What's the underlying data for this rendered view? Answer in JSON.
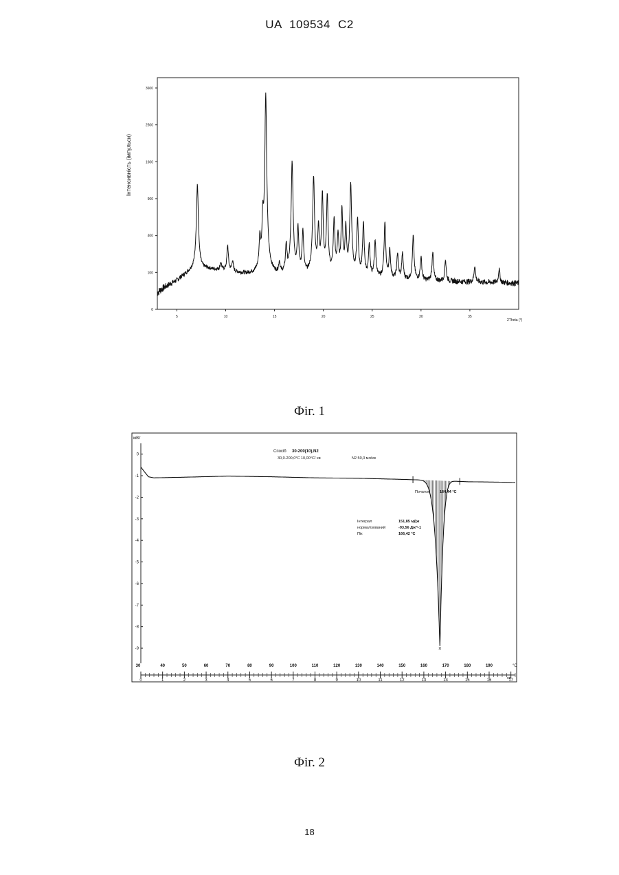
{
  "header": {
    "patent_id": "UA   109534   C2"
  },
  "figures": {
    "fig1_caption": "Фіг. 1",
    "fig2_caption": "Фіг. 2"
  },
  "page_number": "18",
  "chart_data": [
    {
      "type": "line",
      "ylabel": "Інтенсивність (імпульси)",
      "xlabel": "2Theta (°)",
      "x_ticks": [
        5,
        10,
        15,
        20,
        25,
        30,
        35
      ],
      "y_ticks": [
        {
          "value": 0,
          "label": "0"
        },
        {
          "value": 100,
          "label": "100"
        },
        {
          "value": 400,
          "label": "400"
        },
        {
          "value": 900,
          "label": "900"
        },
        {
          "value": 1600,
          "label": "1600"
        },
        {
          "value": 2500,
          "label": "2500"
        },
        {
          "value": 3600,
          "label": "3600"
        }
      ],
      "xlim": [
        3,
        40
      ],
      "y_scale": "sqrt",
      "baseline": [
        [
          3,
          20
        ],
        [
          5,
          60
        ],
        [
          6.5,
          110
        ],
        [
          8,
          120
        ],
        [
          10,
          110
        ],
        [
          12,
          90
        ],
        [
          14,
          85
        ],
        [
          17,
          80
        ],
        [
          20,
          85
        ],
        [
          25,
          70
        ],
        [
          30,
          60
        ],
        [
          35,
          55
        ],
        [
          40,
          50
        ]
      ],
      "peaks": [
        {
          "x": 7.1,
          "y": 1150,
          "w": 0.1
        },
        {
          "x": 9.5,
          "y": 160,
          "w": 0.08
        },
        {
          "x": 10.2,
          "y": 300,
          "w": 0.08
        },
        {
          "x": 10.7,
          "y": 170,
          "w": 0.08
        },
        {
          "x": 13.5,
          "y": 350,
          "w": 0.08
        },
        {
          "x": 13.8,
          "y": 580,
          "w": 0.08
        },
        {
          "x": 14.1,
          "y": 3400,
          "w": 0.09
        },
        {
          "x": 15.5,
          "y": 150,
          "w": 0.08
        },
        {
          "x": 16.2,
          "y": 300,
          "w": 0.08
        },
        {
          "x": 16.8,
          "y": 1600,
          "w": 0.09
        },
        {
          "x": 17.4,
          "y": 500,
          "w": 0.08
        },
        {
          "x": 17.9,
          "y": 450,
          "w": 0.08
        },
        {
          "x": 19.0,
          "y": 1300,
          "w": 0.09
        },
        {
          "x": 19.5,
          "y": 500,
          "w": 0.08
        },
        {
          "x": 19.9,
          "y": 1000,
          "w": 0.08
        },
        {
          "x": 20.4,
          "y": 950,
          "w": 0.08
        },
        {
          "x": 21.1,
          "y": 600,
          "w": 0.08
        },
        {
          "x": 21.5,
          "y": 400,
          "w": 0.08
        },
        {
          "x": 21.9,
          "y": 750,
          "w": 0.08
        },
        {
          "x": 22.3,
          "y": 500,
          "w": 0.08
        },
        {
          "x": 22.8,
          "y": 1150,
          "w": 0.09
        },
        {
          "x": 23.5,
          "y": 600,
          "w": 0.08
        },
        {
          "x": 24.1,
          "y": 550,
          "w": 0.08
        },
        {
          "x": 24.7,
          "y": 300,
          "w": 0.08
        },
        {
          "x": 25.3,
          "y": 350,
          "w": 0.08
        },
        {
          "x": 26.3,
          "y": 550,
          "w": 0.08
        },
        {
          "x": 26.8,
          "y": 260,
          "w": 0.08
        },
        {
          "x": 27.6,
          "y": 230,
          "w": 0.08
        },
        {
          "x": 28.1,
          "y": 230,
          "w": 0.08
        },
        {
          "x": 29.2,
          "y": 400,
          "w": 0.08
        },
        {
          "x": 30.0,
          "y": 200,
          "w": 0.08
        },
        {
          "x": 31.2,
          "y": 240,
          "w": 0.08
        },
        {
          "x": 32.5,
          "y": 180,
          "w": 0.08
        },
        {
          "x": 35.5,
          "y": 140,
          "w": 0.08
        },
        {
          "x": 38.0,
          "y": 120,
          "w": 0.08
        }
      ]
    },
    {
      "type": "line",
      "ylabel": "мВт",
      "xlabel_temp": "°C",
      "xlabel_time": "хв",
      "y_ticks": [
        0,
        -1,
        -2,
        -3,
        -4,
        -5,
        -6,
        -7,
        -8,
        -9
      ],
      "temp_ticks": [
        30,
        40,
        50,
        60,
        70,
        80,
        90,
        100,
        110,
        120,
        130,
        140,
        150,
        160,
        170,
        180,
        190
      ],
      "time_ticks": [
        0,
        1,
        2,
        3,
        4,
        5,
        6,
        7,
        8,
        9,
        10,
        11,
        12,
        13,
        14,
        15,
        16,
        17
      ],
      "xlim_min": [
        0,
        17.2
      ],
      "ylim": [
        -9.7,
        0.5
      ],
      "baseline": [
        [
          0.0,
          -0.6
        ],
        [
          0.15,
          -0.8
        ],
        [
          0.35,
          -1.05
        ],
        [
          0.6,
          -1.1
        ],
        [
          2,
          -1.07
        ],
        [
          4,
          -1.02
        ],
        [
          6,
          -1.05
        ],
        [
          8,
          -1.1
        ],
        [
          10,
          -1.12
        ],
        [
          12,
          -1.17
        ],
        [
          13.5,
          -1.22
        ],
        [
          15,
          -1.28
        ],
        [
          16.5,
          -1.3
        ],
        [
          17.2,
          -1.32
        ]
      ],
      "dip": {
        "start": 12.5,
        "onset": 13.2,
        "peak_x": 13.74,
        "peak_y": -9.0,
        "end": 14.65
      },
      "annotations": {
        "method_label": "Спосіб",
        "method_value": "30-200(10),N2",
        "method_line2": "30,0-200,0°C 10,00°C/ хв",
        "gas": "N2 50,0 мл/хв",
        "onset_label": "Початок",
        "onset_value": "164,44 °C",
        "integral_label": "Інтеграл",
        "integral_value": "151,85 мДж",
        "normalized_label": "нормалізований",
        "normalized_value": "-93,56 Дж^-1",
        "peak_label": "Пік",
        "peak_value": "166,42 °C"
      }
    }
  ]
}
